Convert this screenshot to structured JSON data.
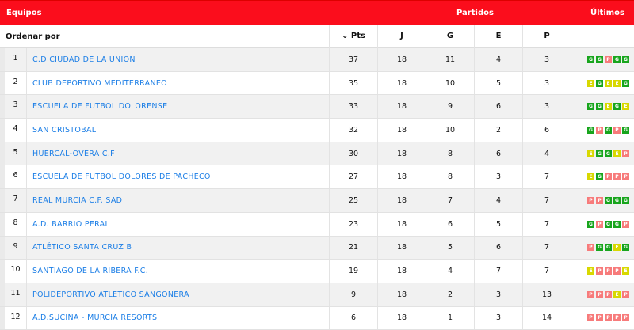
{
  "header": {
    "equipos": "Equipos",
    "partidos": "Partidos",
    "ultimos": "Últimos"
  },
  "sort": {
    "label": "Ordenar por",
    "pts": "Pts",
    "j": "J",
    "g": "G",
    "e": "E",
    "p": "P",
    "sort_icon": "chevron-down-icon"
  },
  "result_colors": {
    "G": "#18a51d",
    "E": "#d8d800",
    "P": "#f77b7b"
  },
  "rows": [
    {
      "pos": "1",
      "team": "C.D CIUDAD DE LA UNION",
      "pts": "37",
      "j": "18",
      "g": "11",
      "e": "4",
      "p": "3",
      "last": [
        "G",
        "G",
        "P",
        "G",
        "G"
      ]
    },
    {
      "pos": "2",
      "team": "CLUB DEPORTIVO MEDITERRANEO",
      "pts": "35",
      "j": "18",
      "g": "10",
      "e": "5",
      "p": "3",
      "last": [
        "E",
        "G",
        "E",
        "E",
        "G"
      ]
    },
    {
      "pos": "3",
      "team": "ESCUELA DE FUTBOL DOLORENSE",
      "pts": "33",
      "j": "18",
      "g": "9",
      "e": "6",
      "p": "3",
      "last": [
        "G",
        "G",
        "E",
        "G",
        "E"
      ]
    },
    {
      "pos": "4",
      "team": "SAN CRISTOBAL",
      "pts": "32",
      "j": "18",
      "g": "10",
      "e": "2",
      "p": "6",
      "last": [
        "G",
        "P",
        "G",
        "P",
        "G"
      ]
    },
    {
      "pos": "5",
      "team": "HUERCAL-OVERA C.F",
      "pts": "30",
      "j": "18",
      "g": "8",
      "e": "6",
      "p": "4",
      "last": [
        "E",
        "G",
        "G",
        "E",
        "P"
      ]
    },
    {
      "pos": "6",
      "team": "ESCUELA DE FUTBOL DOLORES DE PACHECO",
      "pts": "27",
      "j": "18",
      "g": "8",
      "e": "3",
      "p": "7",
      "last": [
        "E",
        "G",
        "P",
        "P",
        "P"
      ]
    },
    {
      "pos": "7",
      "team": "REAL MURCIA C.F. SAD",
      "pts": "25",
      "j": "18",
      "g": "7",
      "e": "4",
      "p": "7",
      "last": [
        "P",
        "P",
        "G",
        "G",
        "G"
      ]
    },
    {
      "pos": "8",
      "team": "A.D. BARRIO PERAL",
      "pts": "23",
      "j": "18",
      "g": "6",
      "e": "5",
      "p": "7",
      "last": [
        "G",
        "P",
        "G",
        "G",
        "P"
      ]
    },
    {
      "pos": "9",
      "team": "ATLÉTICO SANTA CRUZ B",
      "pts": "21",
      "j": "18",
      "g": "5",
      "e": "6",
      "p": "7",
      "last": [
        "P",
        "G",
        "G",
        "E",
        "G"
      ]
    },
    {
      "pos": "10",
      "team": "SANTIAGO DE LA RIBERA F.C.",
      "pts": "19",
      "j": "18",
      "g": "4",
      "e": "7",
      "p": "7",
      "last": [
        "E",
        "P",
        "P",
        "P",
        "E"
      ]
    },
    {
      "pos": "11",
      "team": "POLIDEPORTIVO ATLETICO SANGONERA",
      "pts": "9",
      "j": "18",
      "g": "2",
      "e": "3",
      "p": "13",
      "last": [
        "P",
        "P",
        "P",
        "E",
        "P"
      ]
    },
    {
      "pos": "12",
      "team": "A.D.SUCINA - MURCIA RESORTS",
      "pts": "6",
      "j": "18",
      "g": "1",
      "e": "3",
      "p": "14",
      "last": [
        "P",
        "P",
        "P",
        "P",
        "P"
      ]
    }
  ]
}
